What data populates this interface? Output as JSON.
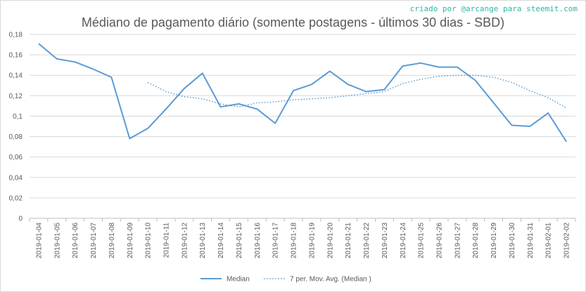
{
  "credit": "criado por @arcange para steemit.com",
  "chart_data": {
    "type": "line",
    "title": "Médiano de pagamento diário (somente postagens - últimos 30 dias - SBD)",
    "xlabel": "",
    "ylabel": "",
    "ylim": [
      0,
      0.18
    ],
    "yticks": [
      0,
      0.02,
      0.04,
      0.06,
      0.08,
      0.1,
      0.12,
      0.14,
      0.16,
      0.18
    ],
    "ytick_labels": [
      "0",
      "0,02",
      "0,04",
      "0,06",
      "0,08",
      "0,1",
      "0,12",
      "0,14",
      "0,16",
      "0,18"
    ],
    "grid": true,
    "legend_position": "bottom",
    "categories": [
      "2019-01-04",
      "2019-01-05",
      "2019-01-06",
      "2019-01-07",
      "2019-01-08",
      "2019-01-09",
      "2019-01-10",
      "2019-01-11",
      "2019-01-12",
      "2019-01-13",
      "2019-01-14",
      "2019-01-15",
      "2019-01-16",
      "2019-01-17",
      "2019-01-18",
      "2019-01-19",
      "2019-01-20",
      "2019-01-21",
      "2019-01-22",
      "2019-01-23",
      "2019-01-24",
      "2019-01-25",
      "2019-01-26",
      "2019-01-27",
      "2019-01-28",
      "2019-01-29",
      "2019-01-30",
      "2019-01-31",
      "2019-02-01",
      "2019-02-02"
    ],
    "series": [
      {
        "name": "Median",
        "style": "solid",
        "color": "#5b9bd5",
        "values": [
          0.171,
          0.156,
          0.153,
          0.146,
          0.138,
          0.078,
          0.088,
          0.107,
          0.127,
          0.142,
          0.109,
          0.112,
          0.107,
          0.093,
          0.125,
          0.131,
          0.144,
          0.131,
          0.124,
          0.126,
          0.149,
          0.152,
          0.148,
          0.148,
          0.135,
          0.113,
          0.091,
          0.09,
          0.103,
          0.075
        ]
      },
      {
        "name": "7 per. Mov. Avg. (Median )",
        "style": "dotted",
        "color": "#5b9bd5",
        "values": [
          null,
          null,
          null,
          null,
          null,
          null,
          0.133,
          0.124,
          0.119,
          0.117,
          0.112,
          0.109,
          0.113,
          0.114,
          0.116,
          0.117,
          0.118,
          0.12,
          0.122,
          0.124,
          0.132,
          0.136,
          0.139,
          0.14,
          0.14,
          0.138,
          0.133,
          0.125,
          0.118,
          0.108
        ]
      }
    ]
  }
}
